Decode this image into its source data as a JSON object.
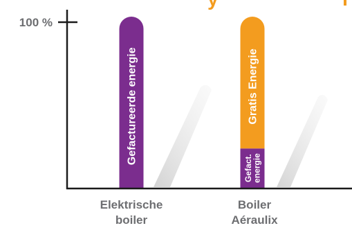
{
  "chart_data": {
    "type": "bar",
    "stacked": true,
    "ylim": [
      0,
      100
    ],
    "y_tick_label": "100 %",
    "title": "",
    "xlabel": "",
    "ylabel": "",
    "categories": [
      {
        "lines": [
          "Elektrische",
          "boiler"
        ]
      },
      {
        "lines": [
          "Boiler",
          "Aéraulix"
        ]
      }
    ],
    "bars": [
      {
        "segments": [
          {
            "label": "Gefactureerde energie",
            "label_lines": [
              "Gefactureerde energie"
            ],
            "value": 100,
            "color": "#7b2d8e"
          }
        ]
      },
      {
        "segments": [
          {
            "label": "Gefact. energie",
            "label_lines": [
              "Gefact.",
              "energie"
            ],
            "value": 23,
            "color": "#7b2d8e"
          },
          {
            "label": "Gratis Energie",
            "label_lines": [
              "Gratis Energie"
            ],
            "value": 77,
            "color": "#f39c1f"
          }
        ]
      }
    ],
    "colors": {
      "axis": "#1a1a1a",
      "label": "#6d6e71",
      "bar_text": "#ffffff",
      "title_fragment": "#f39c1f"
    },
    "partial_title_text": "y"
  }
}
